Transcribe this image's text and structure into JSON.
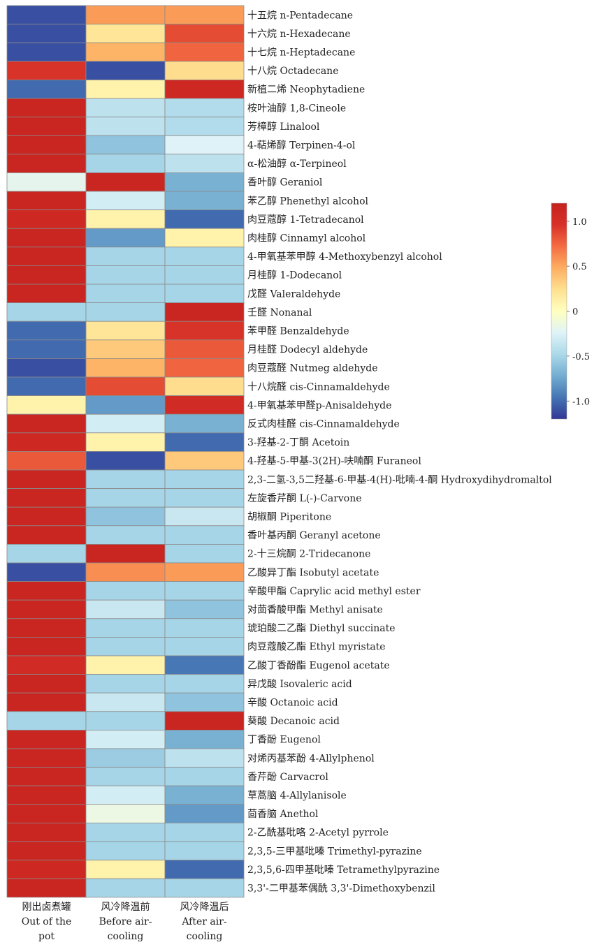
{
  "chart_data": {
    "type": "heatmap",
    "columns": [
      {
        "lines": [
          "刚出卤煮罐",
          "Out of the",
          "pot"
        ]
      },
      {
        "lines": [
          "风冷降温前",
          "Before air-",
          "cooling"
        ]
      },
      {
        "lines": [
          "风冷降温后",
          "After air-",
          "cooling"
        ]
      }
    ],
    "rows": [
      "十五烷 n-Pentadecane",
      "十六烷 n-Hexadecane",
      "十七烷 n-Heptadecane",
      "十八烷 Octadecane",
      "新植二烯 Neophytadiene",
      "桉叶油醇 1,8-Cineole",
      "芳樟醇 Linalool",
      "4-萜烯醇 Terpinen-4-ol",
      "α-松油醇 α-Terpineol",
      "香叶醇 Geraniol",
      "苯乙醇 Phenethyl alcohol",
      "肉豆蔻醇 1-Tetradecanol",
      "肉桂醇 Cinnamyl alcohol",
      "4-甲氧基苯甲醇 4-Methoxybenzyl alcohol",
      "月桂醇 1-Dodecanol",
      "戊醛 Valeraldehyde",
      "壬醛 Nonanal",
      "苯甲醛 Benzaldehyde",
      "月桂醛 Dodecyl aldehyde",
      "肉豆蔻醛 Nutmeg aldehyde",
      "十八烷醛 cis-Cinnamaldehyde",
      "4-甲氧基苯甲醛p-Anisaldehyde",
      "反式肉桂醛 cis-Cinnamaldehyde",
      "3-羟基-2-丁酮 Acetoin",
      "4-羟基-5-甲基-3(2H)-呋喃酮 Furaneol",
      "2,3-二氢-3,5二羟基-6-甲基-4(H)-吡喃-4-酮 Hydroxydihydromaltol",
      "左旋香芹酮 L(-)-Carvone",
      "胡椒酮 Piperitone",
      "香叶基丙酮 Geranyl acetone",
      "2-十三烷酮 2-Tridecanone",
      "乙酸异丁酯 Isobutyl acetate",
      "辛酸甲酯 Caprylic acid methyl ester",
      "对茴香酸甲酯 Methyl anisate",
      "琥珀酸二乙酯 Diethyl succinate",
      "肉豆蔻酸乙酯 Ethyl myristate",
      "乙酸丁香酚酯 Eugenol acetate",
      "异戊酸 Isovaleric acid",
      "辛酸 Octanoic acid",
      "葵酸 Decanoic acid",
      "丁香酚 Eugenol",
      "对烯丙基苯酚 4-Allylphenol",
      "香芹酚 Carvacrol",
      "草蒿脑 4-Allylanisole",
      "茴香脑 Anethol",
      "2-乙酰基吡咯 2-Acetyl pyrrole",
      "2,3,5-三甲基吡嗪 Trimethyl-pyrazine",
      "2,3,5,6-四甲基吡嗪 Tetramethylpyrazine",
      "3,3'-二甲基苯偶酰 3,3'-Dimethoxybenzil"
    ],
    "values": [
      [
        -1.1,
        0.55,
        0.55
      ],
      [
        -1.1,
        0.2,
        0.85
      ],
      [
        -1.1,
        0.45,
        0.75
      ],
      [
        0.95,
        -1.1,
        0.25
      ],
      [
        -1.0,
        0.1,
        1.1
      ],
      [
        1.15,
        -0.4,
        -0.45
      ],
      [
        1.15,
        -0.4,
        -0.45
      ],
      [
        1.15,
        -0.6,
        -0.25
      ],
      [
        1.15,
        -0.5,
        -0.4
      ],
      [
        -0.2,
        1.15,
        -0.7
      ],
      [
        1.15,
        -0.3,
        -0.7
      ],
      [
        1.1,
        0.1,
        -1.0
      ],
      [
        1.15,
        -0.8,
        0.1
      ],
      [
        1.15,
        -0.5,
        -0.5
      ],
      [
        1.15,
        -0.5,
        -0.5
      ],
      [
        1.15,
        -0.5,
        -0.5
      ],
      [
        -0.5,
        -0.5,
        1.15
      ],
      [
        -1.0,
        0.2,
        0.95
      ],
      [
        -1.0,
        0.35,
        0.8
      ],
      [
        -1.1,
        0.45,
        0.75
      ],
      [
        -1.0,
        0.85,
        0.25
      ],
      [
        0.1,
        -0.8,
        1.05
      ],
      [
        1.15,
        -0.3,
        -0.7
      ],
      [
        1.1,
        0.1,
        -1.0
      ],
      [
        0.8,
        -1.1,
        0.35
      ],
      [
        1.15,
        -0.5,
        -0.5
      ],
      [
        1.15,
        -0.5,
        -0.5
      ],
      [
        1.15,
        -0.6,
        -0.35
      ],
      [
        1.15,
        -0.5,
        -0.5
      ],
      [
        -0.5,
        1.15,
        -0.5
      ],
      [
        -1.1,
        0.6,
        0.55
      ],
      [
        1.15,
        -0.5,
        -0.5
      ],
      [
        1.15,
        -0.35,
        -0.6
      ],
      [
        1.15,
        -0.5,
        -0.5
      ],
      [
        1.15,
        -0.5,
        -0.5
      ],
      [
        1.05,
        0.1,
        -0.95
      ],
      [
        1.15,
        -0.5,
        -0.5
      ],
      [
        1.15,
        -0.35,
        -0.6
      ],
      [
        -0.5,
        -0.5,
        1.15
      ],
      [
        1.15,
        -0.3,
        -0.7
      ],
      [
        1.15,
        -0.55,
        -0.4
      ],
      [
        1.15,
        -0.5,
        -0.5
      ],
      [
        1.15,
        -0.3,
        -0.7
      ],
      [
        1.15,
        -0.15,
        -0.8
      ],
      [
        1.15,
        -0.5,
        -0.5
      ],
      [
        1.15,
        -0.5,
        -0.5
      ],
      [
        1.1,
        0.1,
        -1.0
      ],
      [
        1.15,
        -0.5,
        -0.5
      ]
    ],
    "scale": {
      "min": -1.2,
      "max": 1.2,
      "ticks": [
        "1.0",
        "0.5",
        "0",
        "-0.5",
        "-1.0"
      ],
      "tick_values": [
        1.0,
        0.5,
        0,
        -0.5,
        -1.0
      ]
    },
    "colormap": [
      "#313695",
      "#4575b4",
      "#74add1",
      "#abd9e9",
      "#e0f3f8",
      "#ffffbf",
      "#fee090",
      "#fdae61",
      "#f46d43",
      "#d73027",
      "#c5221f"
    ],
    "legend_position": "right"
  }
}
